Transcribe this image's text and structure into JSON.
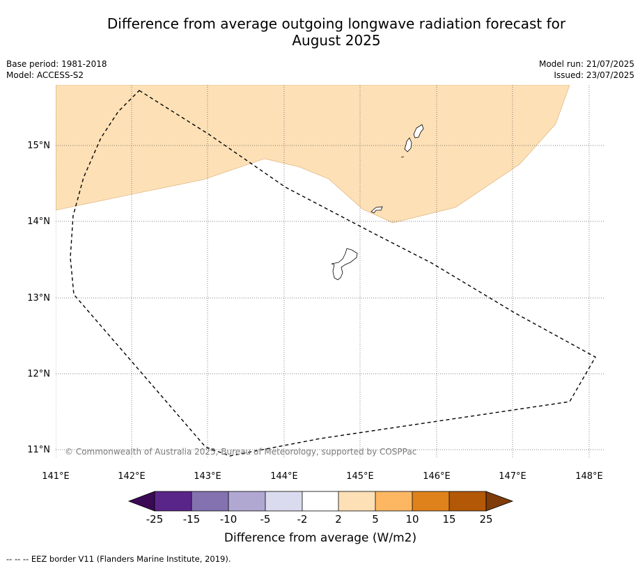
{
  "title": {
    "line1": "Difference from average outgoing longwave radiation forecast for",
    "line2": "August 2025"
  },
  "meta": {
    "base_period": "Base period: 1981-2018",
    "model": "Model: ACCESS-S2",
    "model_run": "Model run: 21/07/2025",
    "issued": "Issued: 23/07/2025"
  },
  "map": {
    "lon_ticks": [
      "141°E",
      "142°E",
      "143°E",
      "144°E",
      "145°E",
      "146°E",
      "147°E",
      "148°E"
    ],
    "lat_ticks": [
      "15°N",
      "14°N",
      "13°N",
      "12°N",
      "11°N"
    ],
    "copyright": "© Commonwealth of Australia 2025, Bureau of Meteorology, supported by COSPPac",
    "anomaly_fill_color": "#fde0b6",
    "anomaly_category": "2 to 5",
    "eez_style": "dashed black line"
  },
  "colorbar": {
    "label": "Difference from average (W/m2)",
    "ticks": [
      "-25",
      "-15",
      "-10",
      "-5",
      "-2",
      "2",
      "5",
      "10",
      "15",
      "25"
    ],
    "colors": [
      "#3b0a56",
      "#5a2589",
      "#8472b0",
      "#b1a8d2",
      "#dadbee",
      "#ffffff",
      "#fde0b6",
      "#fdb762",
      "#e0821c",
      "#b35806",
      "#7f3b08"
    ]
  },
  "footnote": "--  --  -- EEZ border V11 (Flanders Marine Institute, 2019)."
}
